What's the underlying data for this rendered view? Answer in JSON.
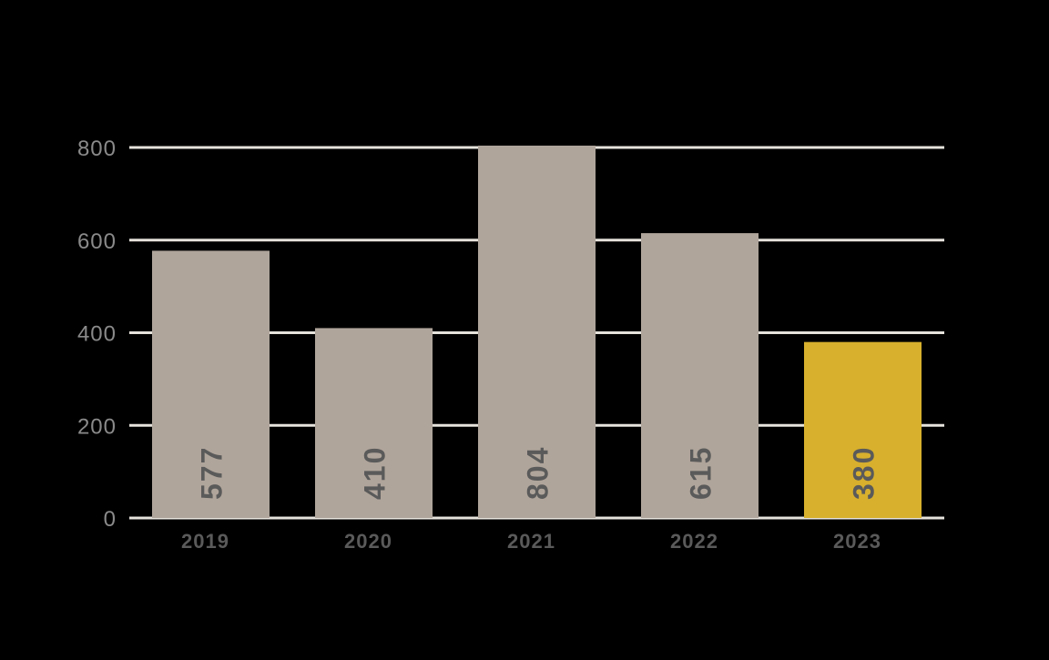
{
  "chart_data": {
    "type": "bar",
    "title": "",
    "xlabel": "",
    "ylabel": "",
    "categories": [
      "2019",
      "2020",
      "2021",
      "2022",
      "2023"
    ],
    "values": [
      577,
      410,
      804,
      615,
      380
    ],
    "value_labels": [
      "577",
      "410",
      "804",
      "615",
      "380"
    ],
    "ylim": [
      0,
      800
    ],
    "yticks": [
      0,
      200,
      400,
      600,
      800
    ],
    "ytick_labels": [
      "0",
      "200",
      "400",
      "600",
      "800"
    ],
    "grid": true,
    "legend": "none",
    "colors": {
      "default_bar": "#b0a59b",
      "highlight_bar": "#d8b02d",
      "grid": "#e6e2dc",
      "background": "#000000"
    },
    "highlight_index": 4
  }
}
